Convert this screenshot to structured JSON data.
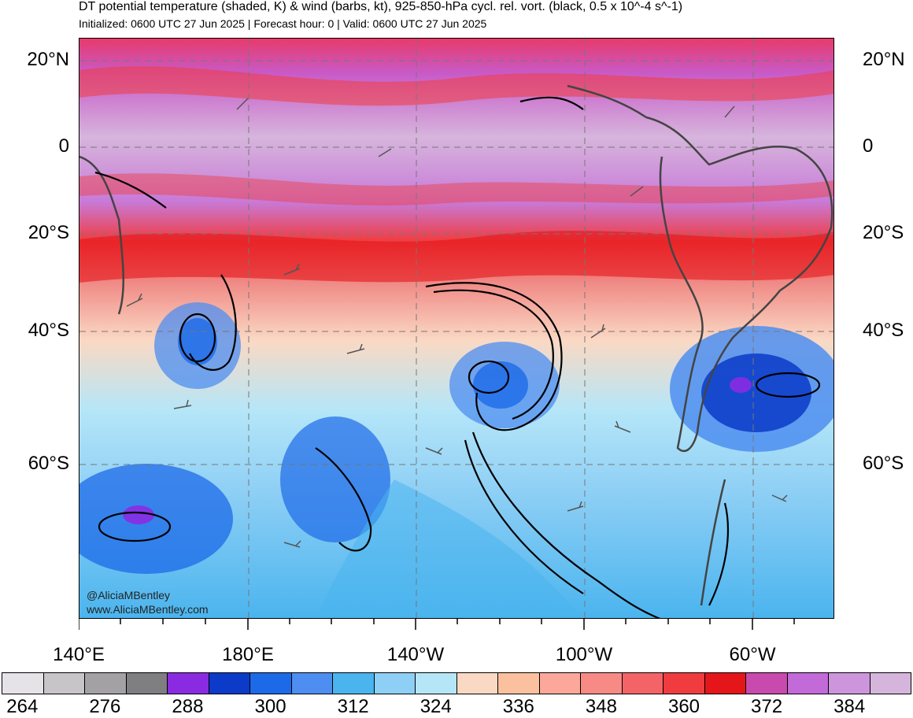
{
  "header": {
    "title": "DT potential temperature (shaded, K) & wind (barbs, kt), 925-850-hPa cycl. rel. vort. (black, 0.5 x 10^-4 s^-1)",
    "subtitle": "Initialized: 0600 UTC 27 Jun 2025 | Forecast hour: 0 | Valid: 0600 UTC 27 Jun 2025"
  },
  "map": {
    "lat_labels": [
      "20°N",
      "0",
      "20°S",
      "40°S",
      "60°S"
    ],
    "lon_labels": [
      "140°E",
      "180°E",
      "140°W",
      "100°W",
      "60°W"
    ]
  },
  "credit": {
    "handle": "@AliciaMBentley",
    "url": "www.AliciaMBentley.com"
  },
  "colorbar": {
    "colors": [
      "#e6e3e8",
      "#c7c5c8",
      "#a3a1a4",
      "#7f7e80",
      "#8a2be2",
      "#0b3bc8",
      "#1c6ae8",
      "#4d8ef0",
      "#4ab4ee",
      "#8ecff5",
      "#b5e6f8",
      "#fad9c4",
      "#fbc09e",
      "#fba89a",
      "#f88a86",
      "#f46466",
      "#f03c3e",
      "#e4161a",
      "#c84aac",
      "#c26ad8",
      "#cd96dc",
      "#d6b5dc"
    ],
    "labels": [
      "264",
      "276",
      "288",
      "300",
      "312",
      "324",
      "336",
      "348",
      "360",
      "372",
      "384"
    ]
  }
}
